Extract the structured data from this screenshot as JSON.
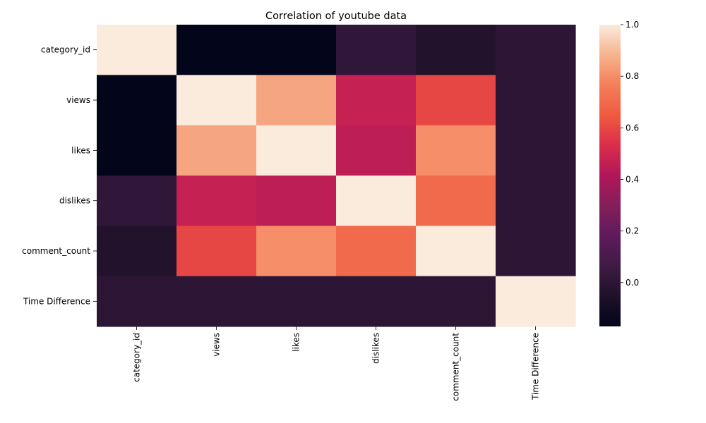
{
  "chart_data": {
    "type": "heatmap",
    "title": "Correlation of youtube data",
    "x_categories": [
      "category_id",
      "views",
      "likes",
      "dislikes",
      "comment_count",
      "Time Difference"
    ],
    "y_categories": [
      "category_id",
      "views",
      "likes",
      "dislikes",
      "comment_count",
      "Time Difference"
    ],
    "values": [
      [
        1.0,
        -0.17,
        -0.17,
        0.01,
        -0.04,
        0.0
      ],
      [
        -0.17,
        1.0,
        0.85,
        0.47,
        0.6,
        0.0
      ],
      [
        -0.17,
        0.85,
        1.0,
        0.45,
        0.8,
        0.0
      ],
      [
        0.01,
        0.47,
        0.45,
        1.0,
        0.7,
        0.0
      ],
      [
        -0.04,
        0.6,
        0.8,
        0.7,
        1.0,
        0.0
      ],
      [
        0.0,
        0.0,
        0.0,
        0.0,
        0.0,
        1.0
      ]
    ],
    "colorbar": {
      "min": -0.17,
      "max": 1.0,
      "ticks": [
        0.0,
        0.2,
        0.4,
        0.6,
        0.8,
        1.0
      ],
      "tick_labels": [
        "0.0",
        "0.2",
        "0.4",
        "0.6",
        "0.8",
        "1.0"
      ],
      "colormap": "rocket",
      "colormap_stops": [
        [
          0.0,
          "#03051a"
        ],
        [
          0.1,
          "#1e1129"
        ],
        [
          0.2,
          "#3f1b44"
        ],
        [
          0.3,
          "#5f1a5c"
        ],
        [
          0.4,
          "#841e5a"
        ],
        [
          0.5,
          "#b01759"
        ],
        [
          0.6,
          "#dc2d4a"
        ],
        [
          0.7,
          "#ef5a3f"
        ],
        [
          0.8,
          "#f47e5a"
        ],
        [
          0.9,
          "#f6b48e"
        ],
        [
          1.0,
          "#faebdd"
        ]
      ]
    },
    "grid": false,
    "legend": "colorbar-right"
  }
}
